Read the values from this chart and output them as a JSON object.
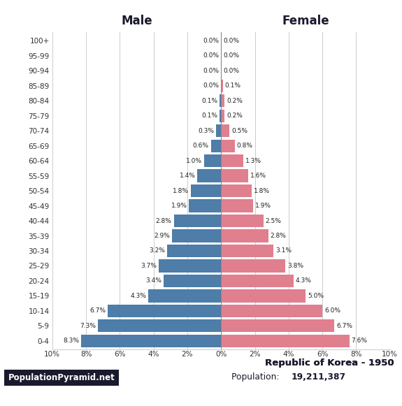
{
  "age_groups": [
    "0-4",
    "5-9",
    "10-14",
    "15-19",
    "20-24",
    "25-29",
    "30-34",
    "35-39",
    "40-44",
    "45-49",
    "50-54",
    "55-59",
    "60-64",
    "65-69",
    "70-74",
    "75-79",
    "80-84",
    "85-89",
    "90-94",
    "95-99",
    "100+"
  ],
  "male_pct": [
    8.3,
    7.3,
    6.7,
    4.3,
    3.4,
    3.7,
    3.2,
    2.9,
    2.8,
    1.9,
    1.8,
    1.4,
    1.0,
    0.6,
    0.3,
    0.1,
    0.1,
    0.0,
    0.0,
    0.0,
    0.0
  ],
  "female_pct": [
    7.6,
    6.7,
    6.0,
    5.0,
    4.3,
    3.8,
    3.1,
    2.8,
    2.5,
    1.9,
    1.8,
    1.6,
    1.3,
    0.8,
    0.5,
    0.2,
    0.2,
    0.1,
    0.0,
    0.0,
    0.0
  ],
  "male_color": "#4d7da8",
  "female_color": "#e07f8e",
  "title_country": "Republic of Korea - 1950",
  "population": "19,211,387",
  "xlabel_left": "Male",
  "xlabel_right": "Female",
  "watermark": "PopulationPyramid.net",
  "xlim": 10.0,
  "bar_height": 0.85,
  "background_color": "#ffffff",
  "grid_color": "#cccccc",
  "dark_color": "#1a1a2e"
}
